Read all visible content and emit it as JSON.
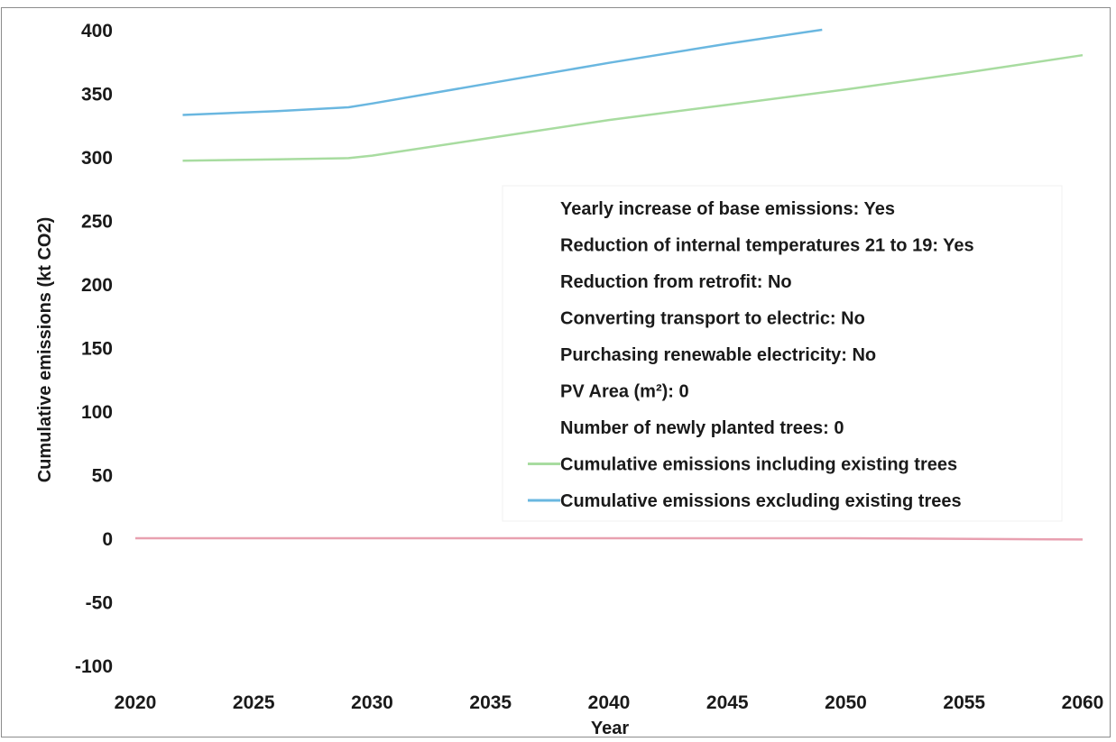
{
  "chart_data": {
    "type": "line",
    "title": "",
    "xlabel": "Year",
    "ylabel": "Cumulative emissions (kt CO2)",
    "xlim": [
      2020,
      2060
    ],
    "ylim": [
      -100,
      400
    ],
    "x_ticks": [
      "2020",
      "2025",
      "2030",
      "2035",
      "2040",
      "2045",
      "2050",
      "2055",
      "2060"
    ],
    "y_ticks": [
      "400",
      "350",
      "300",
      "250",
      "200",
      "150",
      "100",
      "50",
      "0",
      "-50",
      "-100"
    ],
    "grid": false,
    "legend_position": "center-right",
    "legend_notes": [
      "Yearly increase of base emissions: Yes",
      "Reduction of internal temperatures 21 to 19: Yes",
      "Reduction from retrofit: No",
      "Converting transport to electric: No",
      "Purchasing renewable electricity: No",
      "PV Area (m²): 0",
      "Number of newly planted trees: 0"
    ],
    "series": [
      {
        "name": "Cumulative emissions including existing trees",
        "color": "#a8dca0",
        "x": [
          2022,
          2026,
          2029,
          2030,
          2035,
          2040,
          2045,
          2050,
          2055,
          2060
        ],
        "values": [
          297,
          298,
          299,
          301,
          315,
          329,
          341,
          353,
          366,
          380
        ]
      },
      {
        "name": "Cumulative emissions excluding existing trees",
        "color": "#6ab7e0",
        "x": [
          2022,
          2026,
          2029,
          2030,
          2035,
          2040,
          2045,
          2049
        ],
        "values": [
          333,
          336,
          339,
          342,
          358,
          374,
          389,
          400
        ]
      },
      {
        "name": "",
        "color": "#e8a0b0",
        "x": [
          2020,
          2030,
          2040,
          2050,
          2060
        ],
        "values": [
          0,
          0,
          0,
          0,
          -1
        ]
      }
    ]
  }
}
